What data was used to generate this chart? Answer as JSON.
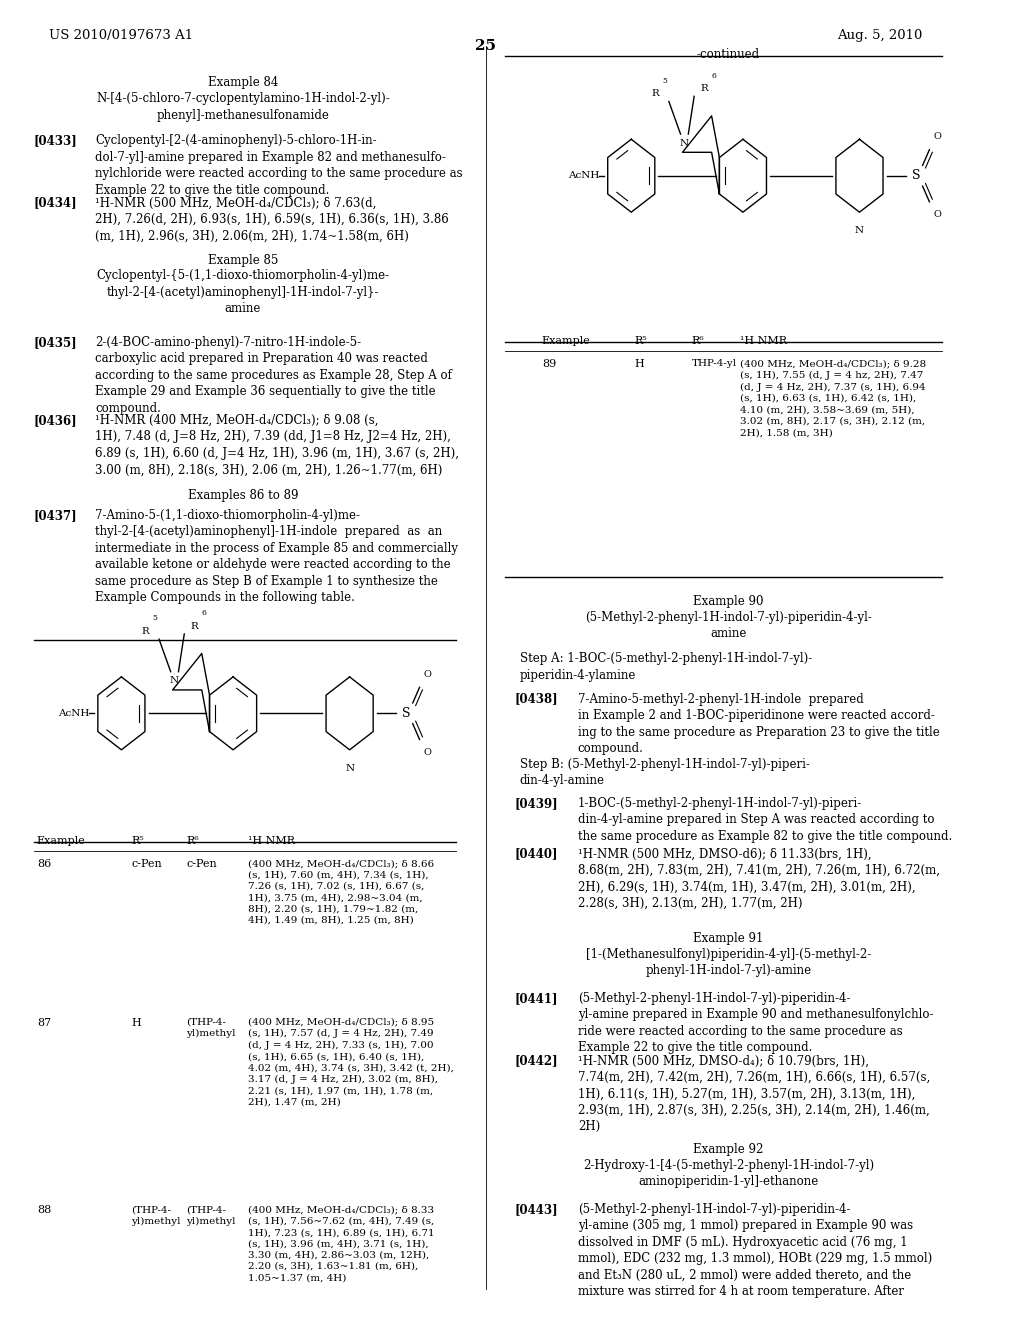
{
  "bg_color": "#ffffff",
  "header_left": "US 2010/0197673 A1",
  "header_right": "Aug. 5, 2010",
  "page_number": "25",
  "font_family": "serif",
  "base_font_size": 8.5
}
